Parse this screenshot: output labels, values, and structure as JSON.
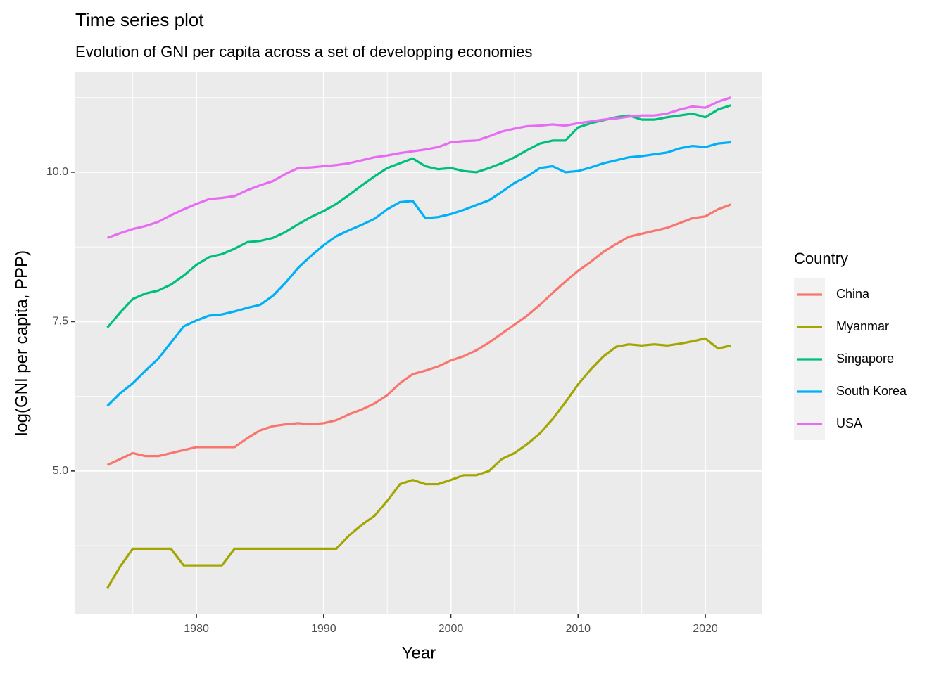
{
  "chart_data": {
    "type": "line",
    "title": "Time series plot",
    "subtitle": "Evolution of GNI per capita across a set of developping economies",
    "x_label": "Year",
    "y_label": "log(GNI per capita, PPP)",
    "legend_title": "Country",
    "legend_position": "right",
    "grid": true,
    "xlim": [
      1970.48,
      2024.48
    ],
    "ylim": [
      2.61,
      11.67
    ],
    "xticks": [
      1980,
      1990,
      2000,
      2010,
      2020
    ],
    "yticks": [
      {
        "value": 5,
        "label": "5.0"
      },
      7.5,
      {
        "value": 10,
        "label": "10.0"
      }
    ],
    "x_minor_breaks": [
      1975,
      1985,
      1995,
      2005,
      2015
    ],
    "y_minor_breaks": [
      3.75,
      6.25,
      8.75,
      11.25
    ],
    "x": [
      1973,
      1974,
      1975,
      1976,
      1977,
      1978,
      1979,
      1980,
      1981,
      1982,
      1983,
      1984,
      1985,
      1986,
      1987,
      1988,
      1989,
      1990,
      1991,
      1992,
      1993,
      1994,
      1995,
      1996,
      1997,
      1998,
      1999,
      2000,
      2001,
      2002,
      2003,
      2004,
      2005,
      2006,
      2007,
      2008,
      2009,
      2010,
      2011,
      2012,
      2013,
      2014,
      2015,
      2016,
      2017,
      2018,
      2019,
      2020,
      2021,
      2022
    ],
    "series": [
      {
        "name": "China",
        "color": "#F8766D",
        "values": [
          5.1,
          5.2,
          5.3,
          5.25,
          5.25,
          5.3,
          5.35,
          5.4,
          5.4,
          5.4,
          5.4,
          5.55,
          5.68,
          5.75,
          5.78,
          5.8,
          5.78,
          5.8,
          5.85,
          5.95,
          6.03,
          6.13,
          6.27,
          6.47,
          6.62,
          6.68,
          6.75,
          6.85,
          6.92,
          7.02,
          7.15,
          7.3,
          7.45,
          7.6,
          7.78,
          7.98,
          8.17,
          8.35,
          8.5,
          8.67,
          8.8,
          8.92,
          8.97,
          9.02,
          9.07,
          9.15,
          9.23,
          9.26,
          9.38,
          9.46
        ]
      },
      {
        "name": "Myanmar",
        "color": "#A3A500",
        "values": [
          3.04,
          3.4,
          3.7,
          3.7,
          3.7,
          3.7,
          3.42,
          3.42,
          3.42,
          3.42,
          3.7,
          3.7,
          3.7,
          3.7,
          3.7,
          3.7,
          3.7,
          3.7,
          3.7,
          3.92,
          4.1,
          4.25,
          4.5,
          4.78,
          4.85,
          4.78,
          4.78,
          4.85,
          4.93,
          4.93,
          5.0,
          5.2,
          5.3,
          5.45,
          5.63,
          5.87,
          6.15,
          6.45,
          6.7,
          6.92,
          7.08,
          7.12,
          7.1,
          7.12,
          7.1,
          7.13,
          7.17,
          7.22,
          7.05,
          7.1
        ]
      },
      {
        "name": "Singapore",
        "color": "#00BF7D",
        "values": [
          7.4,
          7.65,
          7.88,
          7.97,
          8.02,
          8.12,
          8.27,
          8.45,
          8.58,
          8.63,
          8.72,
          8.83,
          8.85,
          8.9,
          9.0,
          9.13,
          9.25,
          9.35,
          9.47,
          9.62,
          9.78,
          9.93,
          10.07,
          10.15,
          10.23,
          10.1,
          10.05,
          10.07,
          10.02,
          10.0,
          10.07,
          10.15,
          10.25,
          10.37,
          10.48,
          10.53,
          10.53,
          10.75,
          10.82,
          10.87,
          10.92,
          10.95,
          10.88,
          10.88,
          10.92,
          10.95,
          10.98,
          10.92,
          11.05,
          11.12
        ]
      },
      {
        "name": "South Korea",
        "color": "#00B0F6",
        "values": [
          6.09,
          6.3,
          6.47,
          6.68,
          6.88,
          7.15,
          7.42,
          7.52,
          7.6,
          7.62,
          7.67,
          7.73,
          7.78,
          7.93,
          8.15,
          8.4,
          8.6,
          8.78,
          8.93,
          9.03,
          9.12,
          9.22,
          9.38,
          9.5,
          9.52,
          9.23,
          9.25,
          9.3,
          9.37,
          9.45,
          9.53,
          9.67,
          9.82,
          9.93,
          10.07,
          10.1,
          10.0,
          10.02,
          10.08,
          10.15,
          10.2,
          10.25,
          10.27,
          10.3,
          10.33,
          10.4,
          10.44,
          10.42,
          10.48,
          10.5
        ]
      },
      {
        "name": "USA",
        "color": "#E76BF3",
        "values": [
          8.9,
          8.98,
          9.05,
          9.1,
          9.17,
          9.28,
          9.38,
          9.47,
          9.55,
          9.57,
          9.6,
          9.7,
          9.78,
          9.85,
          9.97,
          10.07,
          10.08,
          10.1,
          10.12,
          10.15,
          10.2,
          10.25,
          10.28,
          10.32,
          10.35,
          10.38,
          10.42,
          10.5,
          10.52,
          10.53,
          10.6,
          10.68,
          10.73,
          10.77,
          10.78,
          10.8,
          10.78,
          10.82,
          10.85,
          10.88,
          10.9,
          10.93,
          10.95,
          10.95,
          10.98,
          11.05,
          11.1,
          11.08,
          11.18,
          11.25
        ]
      }
    ]
  }
}
